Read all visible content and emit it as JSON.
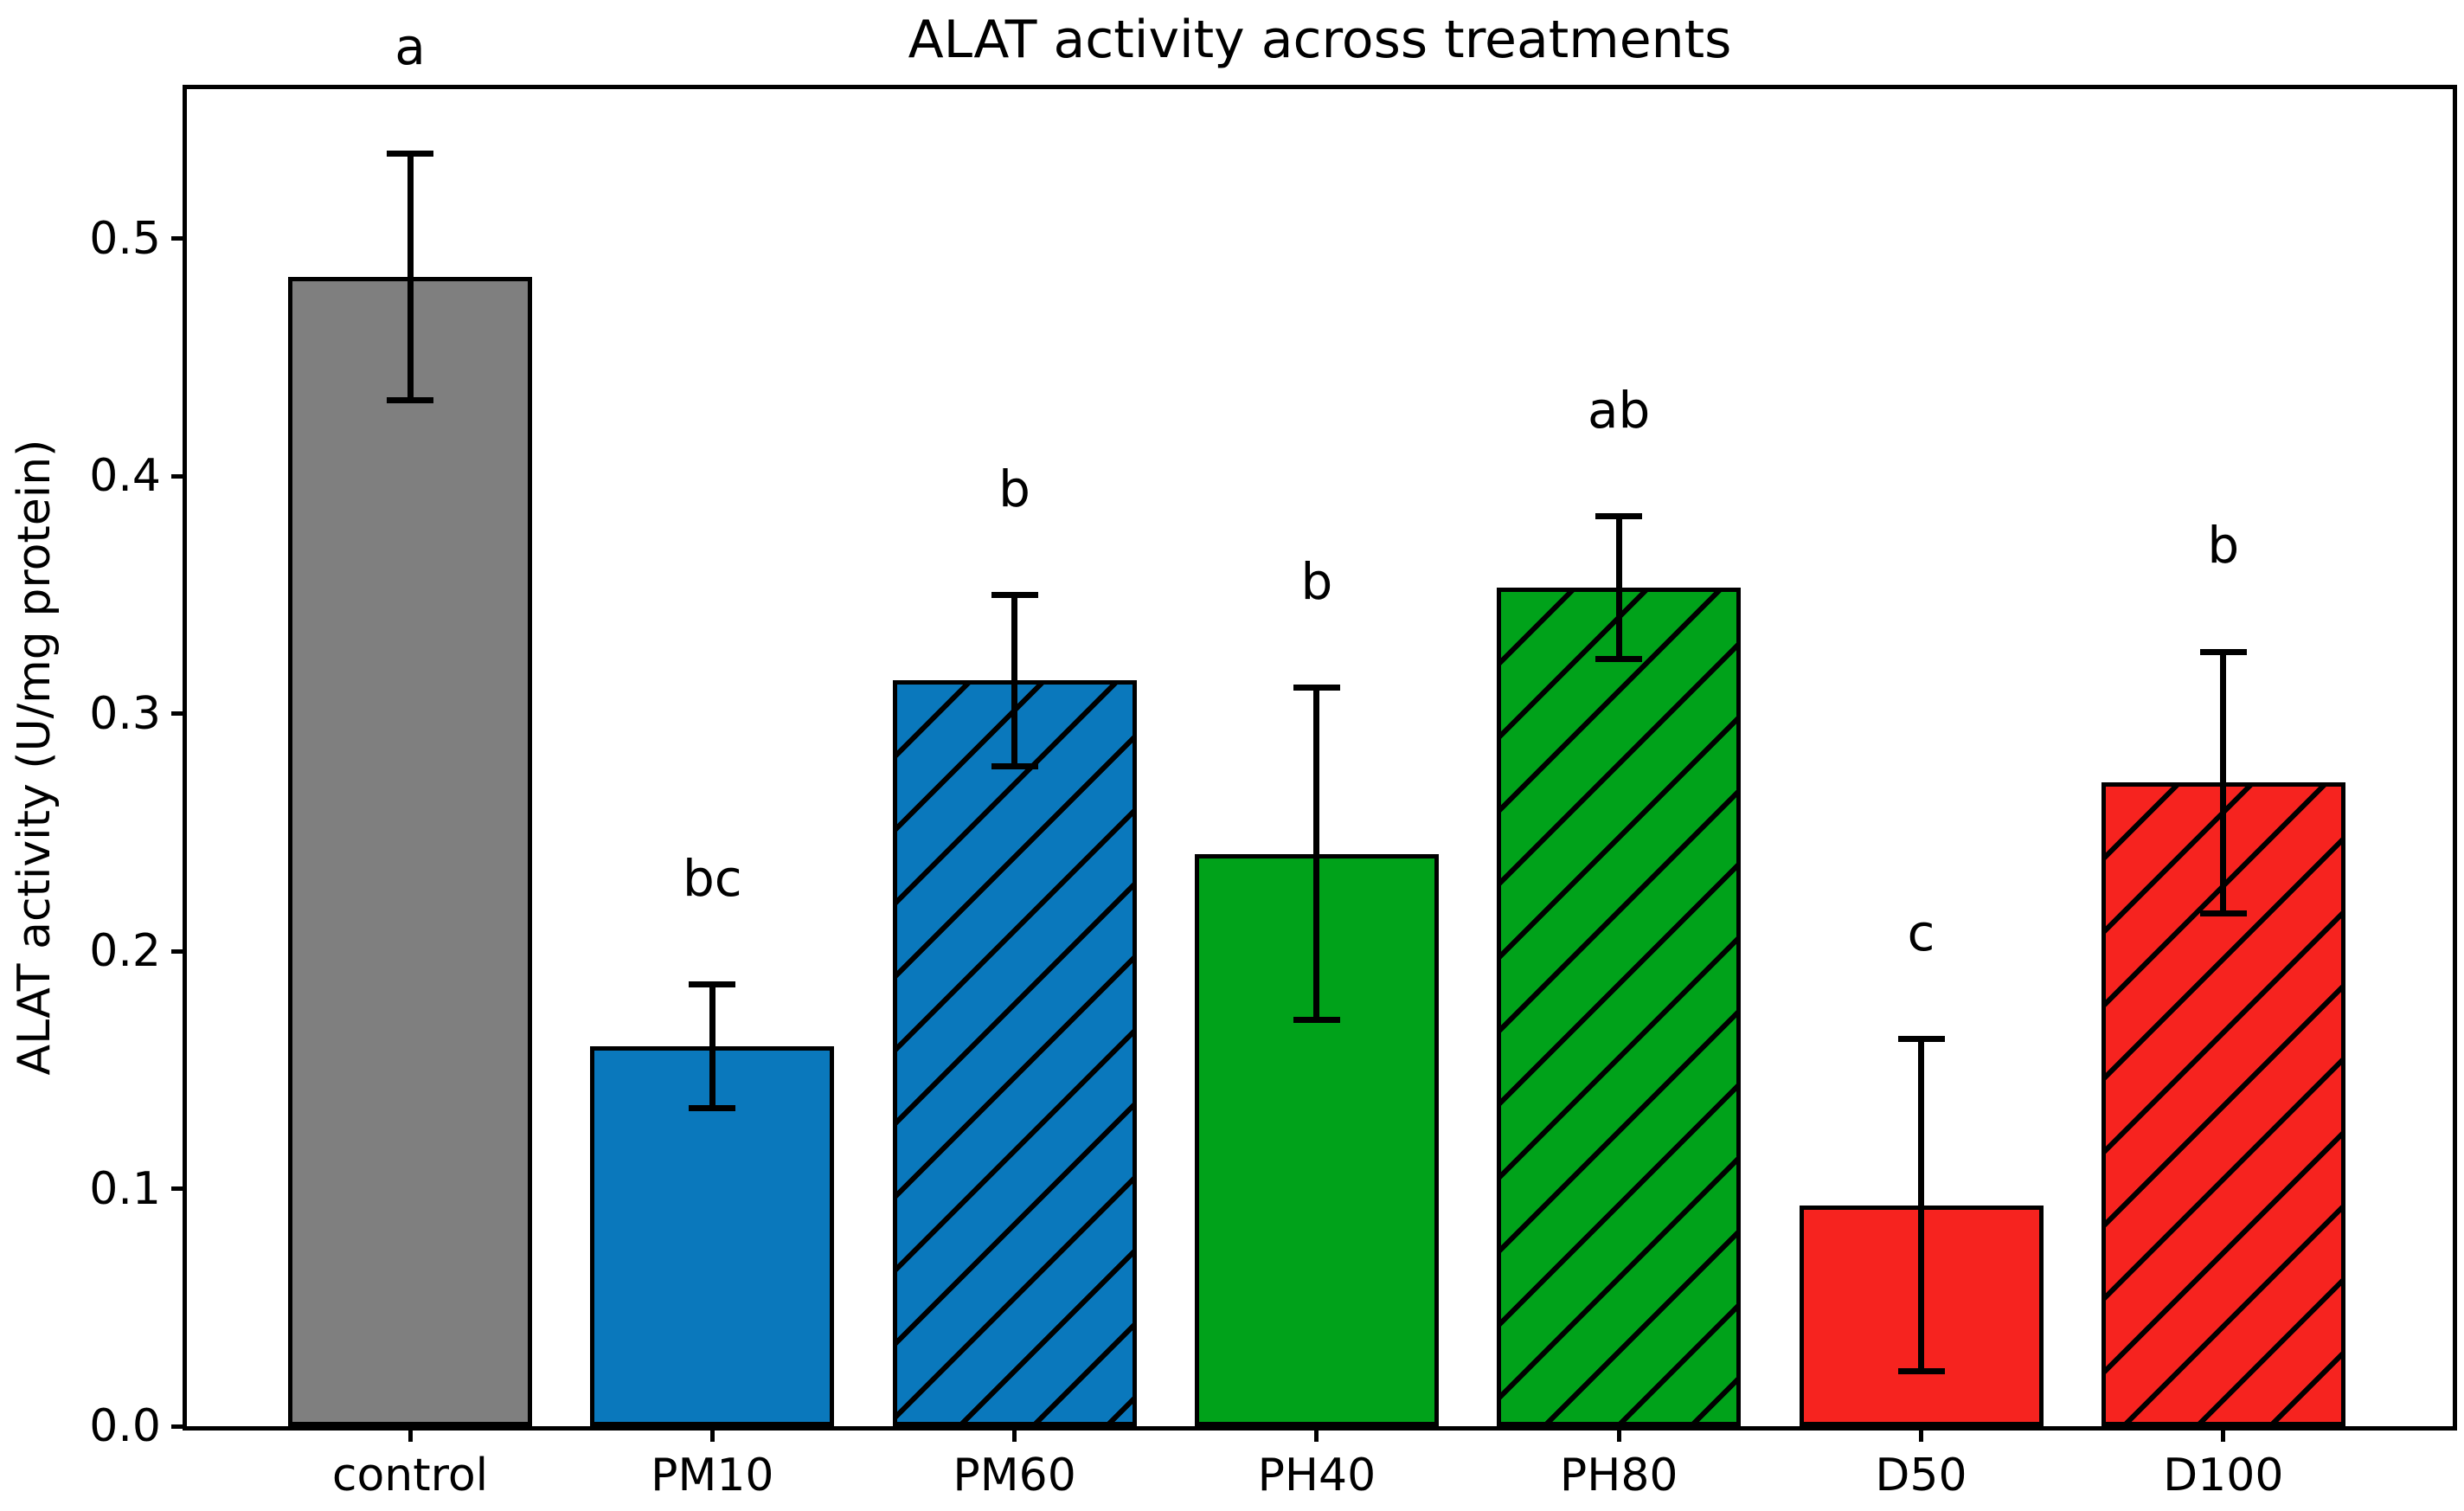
{
  "chart_data": {
    "type": "bar",
    "title": "ALAT activity across treatments",
    "xlabel": "",
    "ylabel": "ALAT activity (U/mg protein)",
    "categories": [
      "control",
      "PM10",
      "PM60",
      "PH40",
      "PH80",
      "D50",
      "D100"
    ],
    "values": [
      0.484,
      0.16,
      0.314,
      0.241,
      0.353,
      0.093,
      0.271
    ],
    "errors": [
      0.052,
      0.026,
      0.036,
      0.07,
      0.03,
      0.07,
      0.055
    ],
    "sig_letters": [
      "a",
      "bc",
      "b",
      "b",
      "ab",
      "c",
      "b"
    ],
    "bar_colors": [
      "#7f7f7f",
      "#0a78bc",
      "#0a78bc",
      "#00a21a",
      "#00a21a",
      "#f6231f",
      "#f6231f"
    ],
    "hatched": [
      false,
      false,
      true,
      false,
      true,
      false,
      true
    ],
    "hatch_style": "/",
    "edge_color": "#000000",
    "error_bar_color": "#000000",
    "ylim": [
      0,
      0.563
    ],
    "yticks": [
      "0.0",
      "0.1",
      "0.2",
      "0.3",
      "0.4",
      "0.5"
    ],
    "grid": false,
    "legend": null
  }
}
